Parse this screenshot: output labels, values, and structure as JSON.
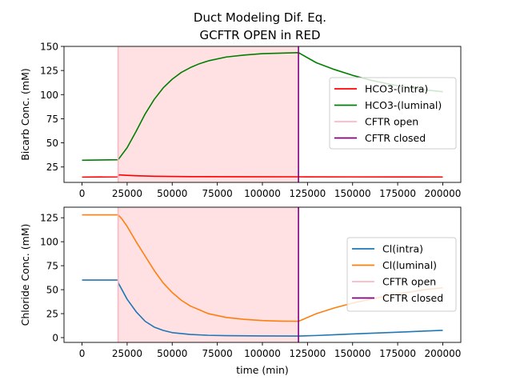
{
  "figure": {
    "title_line1": "Duct Modeling Dif. Eq.",
    "title_line2": "GCFTR OPEN in RED"
  },
  "chart_data": [
    {
      "type": "line",
      "ylabel": "Bicarb Conc. (mM)",
      "xlabel": "",
      "xlim": [
        -10000,
        210000
      ],
      "ylim": [
        9,
        150
      ],
      "xticks": [
        0,
        25000,
        50000,
        75000,
        100000,
        125000,
        150000,
        175000,
        200000
      ],
      "yticks": [
        25,
        50,
        75,
        100,
        125,
        150
      ],
      "show_x_tick_labels": true,
      "grid": false,
      "legend_position": "center-right",
      "shaded_region": {
        "x0": 20000,
        "x1": 120000,
        "color": "#ffe0e3"
      },
      "vlines": [
        {
          "name": "CFTR open",
          "x": 20000,
          "color": "#ffb6c1"
        },
        {
          "name": "CFTR closed",
          "x": 120000,
          "color": "#800080"
        }
      ],
      "series": [
        {
          "name": "HCO3-(intra)",
          "color": "#ff0000",
          "points": [
            [
              0,
              14.5
            ],
            [
              20000,
              14.7
            ],
            [
              20100,
              16.8
            ],
            [
              25000,
              16.3
            ],
            [
              30000,
              15.9
            ],
            [
              40000,
              15.4
            ],
            [
              60000,
              15.0
            ],
            [
              90000,
              14.9
            ],
            [
              120000,
              14.8
            ],
            [
              150000,
              14.7
            ],
            [
              200000,
              14.6
            ]
          ]
        },
        {
          "name": "HCO3-(luminal)",
          "color": "#008000",
          "points": [
            [
              0,
              32
            ],
            [
              20000,
              32.5
            ],
            [
              25000,
              45
            ],
            [
              30000,
              62
            ],
            [
              35000,
              80
            ],
            [
              40000,
              95
            ],
            [
              45000,
              107
            ],
            [
              50000,
              116
            ],
            [
              55000,
              123
            ],
            [
              60000,
              128
            ],
            [
              65000,
              132
            ],
            [
              70000,
              135
            ],
            [
              80000,
              139
            ],
            [
              90000,
              141
            ],
            [
              100000,
              142.5
            ],
            [
              110000,
              143
            ],
            [
              120000,
              143.5
            ],
            [
              130000,
              133
            ],
            [
              140000,
              126
            ],
            [
              150000,
              120
            ],
            [
              160000,
              115
            ],
            [
              170000,
              111
            ],
            [
              180000,
              107.5
            ],
            [
              190000,
              105
            ],
            [
              200000,
              103
            ]
          ]
        }
      ]
    },
    {
      "type": "line",
      "ylabel": "Chloride Conc. (mM)",
      "xlabel": "time (min)",
      "xlim": [
        -10000,
        210000
      ],
      "ylim": [
        -5,
        136
      ],
      "xticks": [
        0,
        25000,
        50000,
        75000,
        100000,
        125000,
        150000,
        175000,
        200000
      ],
      "yticks": [
        0,
        25,
        50,
        75,
        100,
        125
      ],
      "show_x_tick_labels": true,
      "grid": false,
      "legend_position": "center-right",
      "shaded_region": {
        "x0": 20000,
        "x1": 120000,
        "color": "#ffe0e3"
      },
      "vlines": [
        {
          "name": "CFTR open",
          "x": 20000,
          "color": "#ffb6c1"
        },
        {
          "name": "CFTR closed",
          "x": 120000,
          "color": "#800080"
        }
      ],
      "series": [
        {
          "name": "Cl(intra)",
          "color": "#1f77b4",
          "points": [
            [
              0,
              60
            ],
            [
              20000,
              60
            ],
            [
              20100,
              57
            ],
            [
              25000,
              40
            ],
            [
              30000,
              27
            ],
            [
              35000,
              17
            ],
            [
              40000,
              11
            ],
            [
              45000,
              7.5
            ],
            [
              50000,
              5.2
            ],
            [
              60000,
              3.3
            ],
            [
              70000,
              2.4
            ],
            [
              80000,
              2.0
            ],
            [
              100000,
              1.7
            ],
            [
              120000,
              1.6
            ],
            [
              130000,
              2.2
            ],
            [
              140000,
              3.0
            ],
            [
              150000,
              3.8
            ],
            [
              160000,
              4.5
            ],
            [
              170000,
              5.3
            ],
            [
              180000,
              6.0
            ],
            [
              190000,
              6.8
            ],
            [
              200000,
              7.6
            ]
          ]
        },
        {
          "name": "Cl(luminal)",
          "color": "#ff7f0e",
          "points": [
            [
              0,
              128
            ],
            [
              20000,
              128
            ],
            [
              22000,
              124
            ],
            [
              25000,
              116
            ],
            [
              30000,
              100
            ],
            [
              35000,
              85
            ],
            [
              40000,
              70
            ],
            [
              45000,
              57
            ],
            [
              50000,
              47
            ],
            [
              55000,
              39
            ],
            [
              60000,
              33
            ],
            [
              70000,
              25
            ],
            [
              80000,
              21
            ],
            [
              90000,
              19
            ],
            [
              100000,
              17.8
            ],
            [
              110000,
              17.2
            ],
            [
              120000,
              17
            ],
            [
              130000,
              25
            ],
            [
              140000,
              31
            ],
            [
              150000,
              36
            ],
            [
              160000,
              40
            ],
            [
              170000,
              44
            ],
            [
              180000,
              47
            ],
            [
              190000,
              50
            ],
            [
              200000,
              52
            ]
          ]
        }
      ]
    }
  ]
}
